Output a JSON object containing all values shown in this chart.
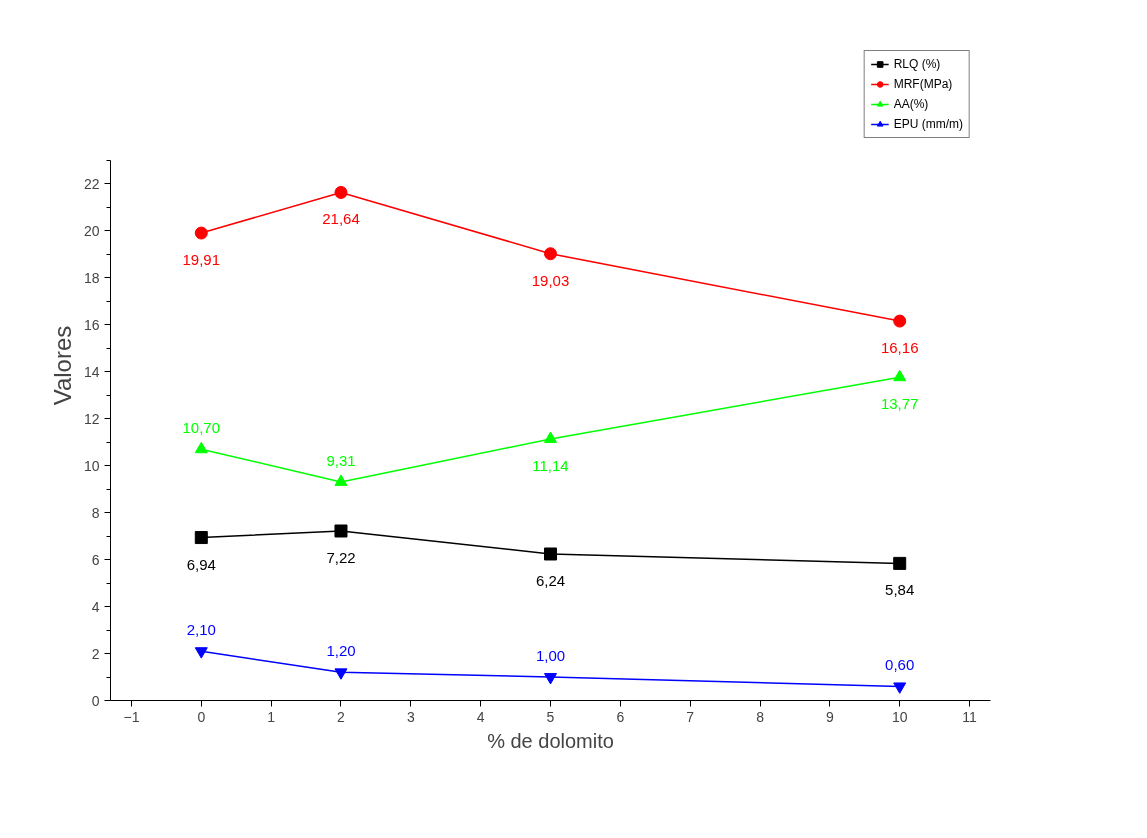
{
  "chart_data": {
    "type": "line",
    "xlabel": "% de dolomito",
    "ylabel": "Valores",
    "x": [
      0,
      2,
      5,
      10
    ],
    "xlim": [
      -1.3,
      11.3
    ],
    "xticks": [
      -1,
      0,
      1,
      2,
      3,
      4,
      5,
      6,
      7,
      8,
      9,
      10,
      11
    ],
    "ylim": [
      0,
      23
    ],
    "yticks": [
      0,
      2,
      4,
      6,
      8,
      10,
      12,
      14,
      16,
      18,
      20,
      22
    ],
    "grid": false,
    "legend": "top right",
    "series": [
      {
        "name": "RLQ (%)",
        "color": "#000000",
        "marker": "square",
        "values": [
          6.94,
          7.22,
          6.24,
          5.84
        ],
        "value_labels": [
          "6,94",
          "7,22",
          "6,24",
          "5,84"
        ]
      },
      {
        "name": "MRF(MPa)",
        "color": "#ff0000",
        "marker": "circle",
        "values": [
          19.91,
          21.64,
          19.03,
          16.16
        ],
        "value_labels": [
          "19,91",
          "21,64",
          "19,03",
          "16,16"
        ]
      },
      {
        "name": "AA(%)",
        "color": "#00ff00",
        "marker": "triangle",
        "values": [
          10.7,
          9.31,
          11.14,
          13.77
        ],
        "value_labels": [
          "10,70",
          "9,31",
          "11,14",
          "13,77"
        ]
      },
      {
        "name": "EPU (mm/m)",
        "color": "#0000ff",
        "marker": "triangle",
        "values": [
          2.1,
          1.2,
          1.0,
          0.6
        ],
        "value_labels": [
          "2,10",
          "1,20",
          "1,00",
          "0,60"
        ]
      }
    ]
  }
}
